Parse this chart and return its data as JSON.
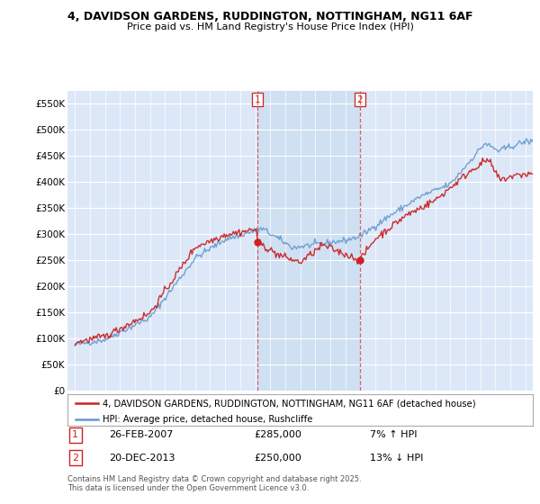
{
  "title_line1": "4, DAVIDSON GARDENS, RUDDINGTON, NOTTINGHAM, NG11 6AF",
  "title_line2": "Price paid vs. HM Land Registry's House Price Index (HPI)",
  "legend_label_red": "4, DAVIDSON GARDENS, RUDDINGTON, NOTTINGHAM, NG11 6AF (detached house)",
  "legend_label_blue": "HPI: Average price, detached house, Rushcliffe",
  "annotation1": {
    "label": "1",
    "date": "26-FEB-2007",
    "price": "£285,000",
    "hpi": "7% ↑ HPI",
    "x_year": 2007.15
  },
  "annotation2": {
    "label": "2",
    "date": "20-DEC-2013",
    "price": "£250,000",
    "hpi": "13% ↓ HPI",
    "x_year": 2013.97
  },
  "footer": "Contains HM Land Registry data © Crown copyright and database right 2025.\nThis data is licensed under the Open Government Licence v3.0.",
  "ylim": [
    0,
    575000
  ],
  "xlim_start": 1994.5,
  "xlim_end": 2025.5,
  "ytick_values": [
    0,
    50000,
    100000,
    150000,
    200000,
    250000,
    300000,
    350000,
    400000,
    450000,
    500000,
    550000
  ],
  "ytick_labels": [
    "£0",
    "£50K",
    "£100K",
    "£150K",
    "£200K",
    "£250K",
    "£300K",
    "£350K",
    "£400K",
    "£450K",
    "£500K",
    "£550K"
  ],
  "fig_bg_color": "#ffffff",
  "plot_bg_color": "#dce8f8",
  "shade_color": "#c8dcf0",
  "red_color": "#cc2222",
  "blue_color": "#6699cc",
  "vline_color": "#cc4444",
  "grid_color": "#ffffff",
  "marker1_x": 2007.15,
  "marker1_y": 285000,
  "marker2_x": 2013.97,
  "marker2_y": 250000
}
